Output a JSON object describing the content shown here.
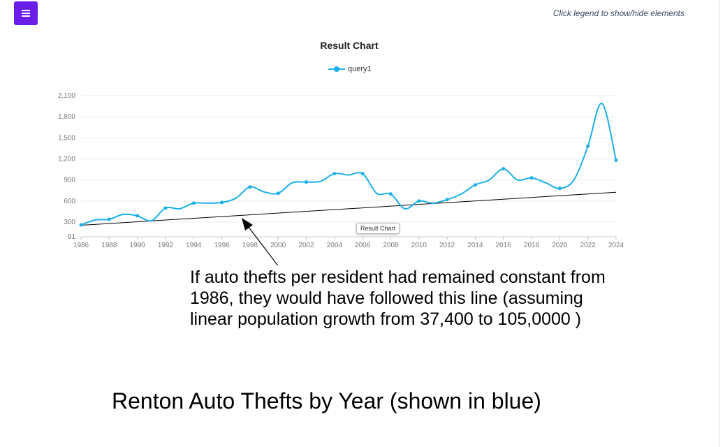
{
  "toolbar": {
    "menu_icon": "hamburger-menu-icon",
    "accent_color": "#6a1ee8"
  },
  "hint_text": "Click legend to show/hide elements",
  "tooltip_text": "Result Chart",
  "annotation_text": "If auto thefts per resident had remained constant from 1986, they would have followed this line (assuming linear population growth from  37,400 to 105,0000 )",
  "caption": "Renton Auto Thefts by Year (shown in blue)",
  "chart_data": {
    "type": "line",
    "title": "Result Chart",
    "xlabel": "",
    "ylabel": "",
    "grid": true,
    "legend_position": "top-center",
    "x_ticks": [
      "1986",
      "1988",
      "1990",
      "1992",
      "1994",
      "1996",
      "1998",
      "2000",
      "2002",
      "2004",
      "2006",
      "2008",
      "2010",
      "2012",
      "2014",
      "2016",
      "2018",
      "2020",
      "2022",
      "2024"
    ],
    "y_ticks": [
      91,
      300,
      600,
      900,
      1200,
      1500,
      1800,
      2100
    ],
    "y_tick_labels": [
      "91",
      "300",
      "600",
      "900",
      "1,200",
      "1,500",
      "1,800",
      "2,100"
    ],
    "ylim": [
      91,
      2100
    ],
    "xlim": [
      1986,
      2024
    ],
    "series": [
      {
        "name": "query1",
        "color": "#1ab0e8",
        "x": [
          1986,
          1987,
          1988,
          1989,
          1990,
          1991,
          1992,
          1993,
          1994,
          1995,
          1996,
          1997,
          1998,
          1999,
          2000,
          2001,
          2002,
          2003,
          2004,
          2005,
          2006,
          2007,
          2008,
          2009,
          2010,
          2011,
          2012,
          2013,
          2014,
          2015,
          2016,
          2017,
          2018,
          2019,
          2020,
          2021,
          2022,
          2023,
          2024
        ],
        "values": [
          260,
          330,
          340,
          410,
          390,
          320,
          500,
          490,
          570,
          570,
          580,
          640,
          800,
          730,
          710,
          860,
          870,
          880,
          990,
          970,
          990,
          710,
          700,
          490,
          600,
          570,
          620,
          700,
          830,
          900,
          1060,
          900,
          930,
          860,
          780,
          900,
          1380,
          1990,
          1180
        ]
      }
    ],
    "trend_line": {
      "label": "",
      "color": "#000000",
      "x": [
        1986,
        2024
      ],
      "values": [
        255,
        725
      ]
    }
  }
}
